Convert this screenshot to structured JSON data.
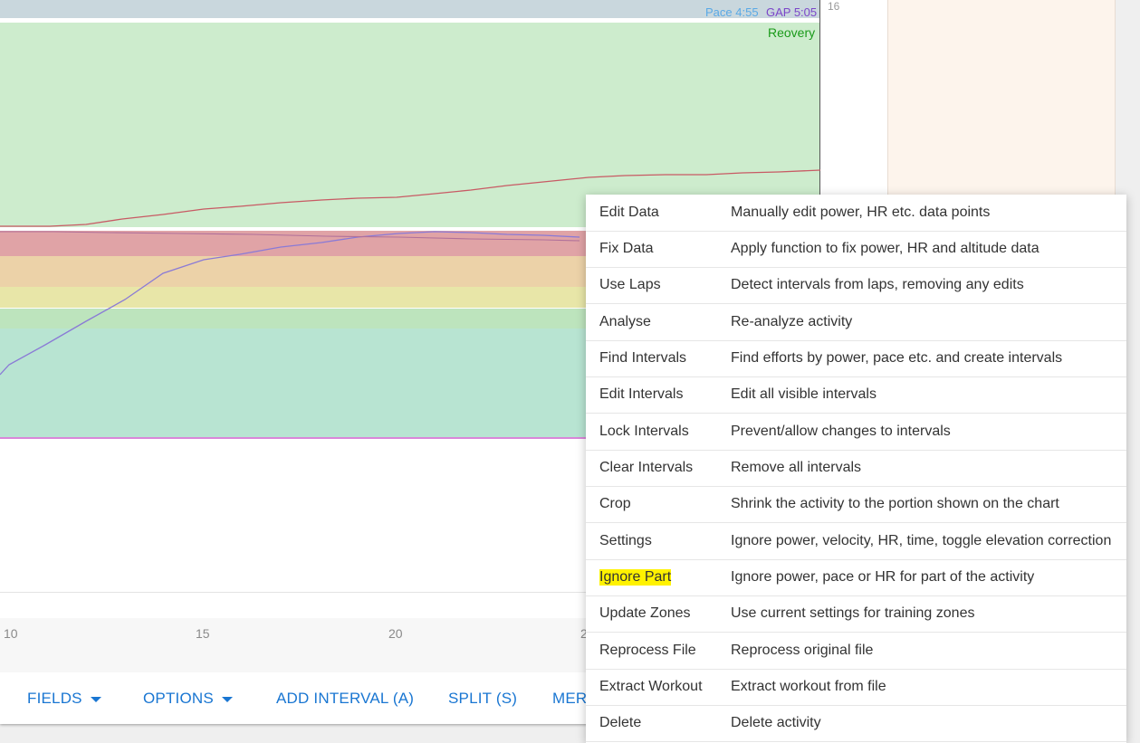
{
  "chart": {
    "pace_label": "Pace 4:55",
    "gap_label": "GAP 5:05",
    "recovery_label": "Reovery",
    "y_tick": "16",
    "x_ticks": [
      "10",
      "15",
      "20",
      "2"
    ]
  },
  "toolbar": {
    "fields_label": "FIELDS",
    "options_label": "OPTIONS",
    "add_interval_label": "ADD INTERVAL (A)",
    "split_label": "SPLIT (S)",
    "merge_label": "MER"
  },
  "menu": {
    "items": [
      {
        "label": "Edit Data",
        "desc": "Manually edit power, HR etc. data points"
      },
      {
        "label": "Fix Data",
        "desc": "Apply function to fix power, HR and altitude data"
      },
      {
        "label": "Use Laps",
        "desc": "Detect intervals from laps, removing any edits"
      },
      {
        "label": "Analyse",
        "desc": "Re-analyze activity"
      },
      {
        "label": "Find Intervals",
        "desc": "Find efforts by power, pace etc. and create intervals"
      },
      {
        "label": "Edit Intervals",
        "desc": "Edit all visible intervals"
      },
      {
        "label": "Lock Intervals",
        "desc": "Prevent/allow changes to intervals"
      },
      {
        "label": "Clear Intervals",
        "desc": "Remove all intervals"
      },
      {
        "label": "Crop",
        "desc": "Shrink the activity to the portion shown on the chart"
      },
      {
        "label": "Settings",
        "desc": "Ignore power, velocity, HR, time, toggle elevation correction"
      },
      {
        "label": "Ignore Part",
        "desc": "Ignore power, pace or HR for part of the activity"
      },
      {
        "label": "Update Zones",
        "desc": "Use current settings for training zones"
      },
      {
        "label": "Reprocess File",
        "desc": "Reprocess original file"
      },
      {
        "label": "Extract Workout",
        "desc": "Extract workout from file"
      },
      {
        "label": "Delete",
        "desc": "Delete activity"
      }
    ],
    "highlight_color": "#fff200"
  },
  "colors": {
    "accent": "#1976d2",
    "hr_line": "#c85a64",
    "pace_line": "#8a7ad6",
    "gap_line": "#c94fc9"
  }
}
